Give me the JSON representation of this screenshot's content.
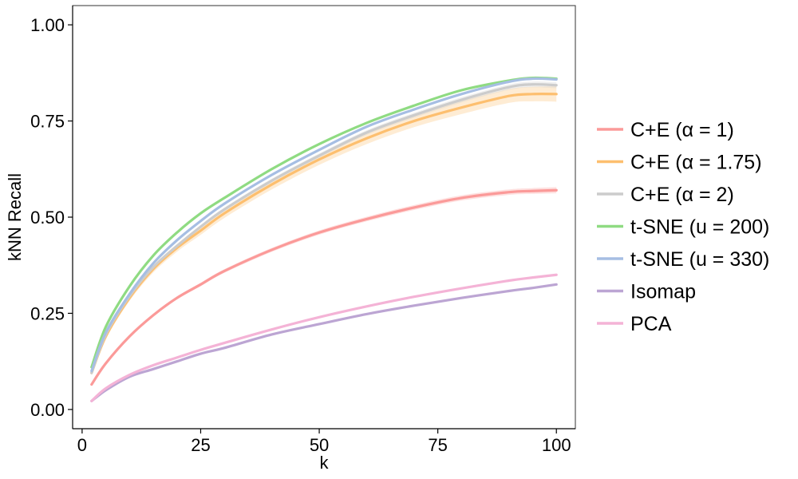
{
  "chart_data": {
    "type": "line",
    "xlabel": "k",
    "ylabel": "kNN Recall",
    "xlim": [
      -2,
      104
    ],
    "ylim": [
      -0.05,
      1.05
    ],
    "x_ticks": [
      0,
      25,
      50,
      75,
      100
    ],
    "x_tick_labels": [
      "0",
      "25",
      "50",
      "75",
      "100"
    ],
    "y_ticks": [
      0,
      0.25,
      0.5,
      0.75,
      1
    ],
    "y_tick_labels": [
      "0.00",
      "0.25",
      "0.50",
      "0.75",
      "1.00"
    ],
    "grid": false,
    "legend_position": "right",
    "x": [
      2,
      5,
      10,
      15,
      20,
      25,
      30,
      40,
      50,
      60,
      70,
      80,
      90,
      95,
      100
    ],
    "series": [
      {
        "name": "C+E (α = 1)",
        "color": "#FB9A99",
        "values": [
          0.065,
          0.12,
          0.19,
          0.245,
          0.29,
          0.325,
          0.36,
          0.415,
          0.46,
          0.495,
          0.525,
          0.55,
          0.565,
          0.568,
          0.57
        ],
        "band": 0.008
      },
      {
        "name": "C+E (α = 1.75)",
        "color": "#FDBF6F",
        "values": [
          0.095,
          0.19,
          0.29,
          0.365,
          0.42,
          0.465,
          0.51,
          0.585,
          0.65,
          0.705,
          0.75,
          0.785,
          0.815,
          0.82,
          0.82
        ],
        "band": 0.02
      },
      {
        "name": "C+E (α = 2)",
        "color": "#CCCCCC",
        "values": [
          0.095,
          0.195,
          0.295,
          0.37,
          0.425,
          0.475,
          0.52,
          0.595,
          0.66,
          0.72,
          0.765,
          0.805,
          0.838,
          0.845,
          0.843
        ],
        "band": 0.008
      },
      {
        "name": "t-SNE (u = 200)",
        "color": "#8FDB82",
        "values": [
          0.11,
          0.215,
          0.32,
          0.4,
          0.46,
          0.51,
          0.55,
          0.625,
          0.69,
          0.745,
          0.79,
          0.83,
          0.855,
          0.862,
          0.86
        ],
        "band": 0
      },
      {
        "name": "t-SNE (u = 330)",
        "color": "#A6BEE3",
        "values": [
          0.1,
          0.2,
          0.3,
          0.38,
          0.44,
          0.49,
          0.535,
          0.61,
          0.675,
          0.735,
          0.78,
          0.82,
          0.852,
          0.86,
          0.858
        ],
        "band": 0
      },
      {
        "name": "Isomap",
        "color": "#BCA5D3",
        "values": [
          0.022,
          0.05,
          0.085,
          0.105,
          0.125,
          0.145,
          0.16,
          0.195,
          0.222,
          0.248,
          0.27,
          0.29,
          0.308,
          0.316,
          0.325
        ],
        "band": 0
      },
      {
        "name": "PCA",
        "color": "#F4B3D6",
        "values": [
          0.022,
          0.055,
          0.09,
          0.115,
          0.135,
          0.155,
          0.173,
          0.208,
          0.24,
          0.268,
          0.293,
          0.315,
          0.335,
          0.343,
          0.35
        ],
        "band": 0
      }
    ]
  }
}
